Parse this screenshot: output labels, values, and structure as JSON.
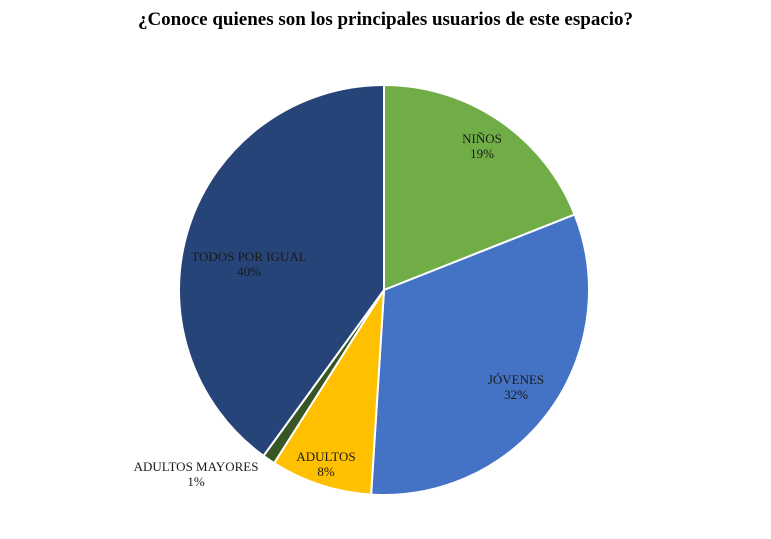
{
  "chart_data": {
    "type": "pie",
    "title": "¿Conoce quienes son los principales usuarios de este espacio?",
    "slices": [
      {
        "name": "NIÑOS",
        "value": 19,
        "label": "19%",
        "color": "#70ad47"
      },
      {
        "name": "JÓVENES",
        "value": 32,
        "label": "32%",
        "color": "#4472c4"
      },
      {
        "name": "ADULTOS",
        "value": 8,
        "label": "8%",
        "color": "#ffc000"
      },
      {
        "name": "ADULTOS MAYORES",
        "value": 1,
        "label": "1%",
        "color": "#375623"
      },
      {
        "name": "TODOS POR IGUAL",
        "value": 40,
        "label": "40%",
        "color": "#264478"
      }
    ],
    "start_angle_deg": 0,
    "direction": "clockwise",
    "legend": "none"
  }
}
